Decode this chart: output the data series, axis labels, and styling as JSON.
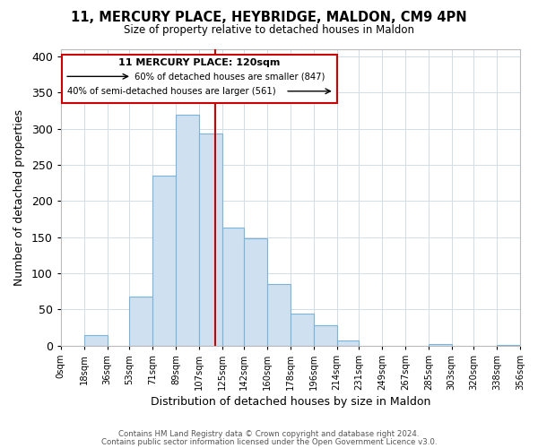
{
  "title": "11, MERCURY PLACE, HEYBRIDGE, MALDON, CM9 4PN",
  "subtitle": "Size of property relative to detached houses in Maldon",
  "xlabel": "Distribution of detached houses by size in Maldon",
  "ylabel": "Number of detached properties",
  "footer_line1": "Contains HM Land Registry data © Crown copyright and database right 2024.",
  "footer_line2": "Contains public sector information licensed under the Open Government Licence v3.0.",
  "bin_labels": [
    "0sqm",
    "18sqm",
    "36sqm",
    "53sqm",
    "71sqm",
    "89sqm",
    "107sqm",
    "125sqm",
    "142sqm",
    "160sqm",
    "178sqm",
    "196sqm",
    "214sqm",
    "231sqm",
    "249sqm",
    "267sqm",
    "285sqm",
    "303sqm",
    "320sqm",
    "338sqm",
    "356sqm"
  ],
  "bar_values": [
    0,
    15,
    0,
    68,
    235,
    320,
    293,
    163,
    148,
    85,
    44,
    28,
    7,
    0,
    0,
    0,
    2,
    0,
    0,
    1
  ],
  "bar_color": "#cfe0f0",
  "bar_edge_color": "#7ab4d8",
  "property_size": 120,
  "property_label": "11 MERCURY PLACE: 120sqm",
  "pct_smaller": 60,
  "n_smaller": 847,
  "pct_larger": 40,
  "n_larger": 561,
  "vline_color": "#cc0000",
  "box_edge_color": "#cc0000",
  "ylim": [
    0,
    410
  ],
  "yticks": [
    0,
    50,
    100,
    150,
    200,
    250,
    300,
    350,
    400
  ],
  "bin_edges": [
    0,
    18,
    36,
    53,
    71,
    89,
    107,
    125,
    142,
    160,
    178,
    196,
    214,
    231,
    249,
    267,
    285,
    303,
    320,
    338,
    356
  ]
}
